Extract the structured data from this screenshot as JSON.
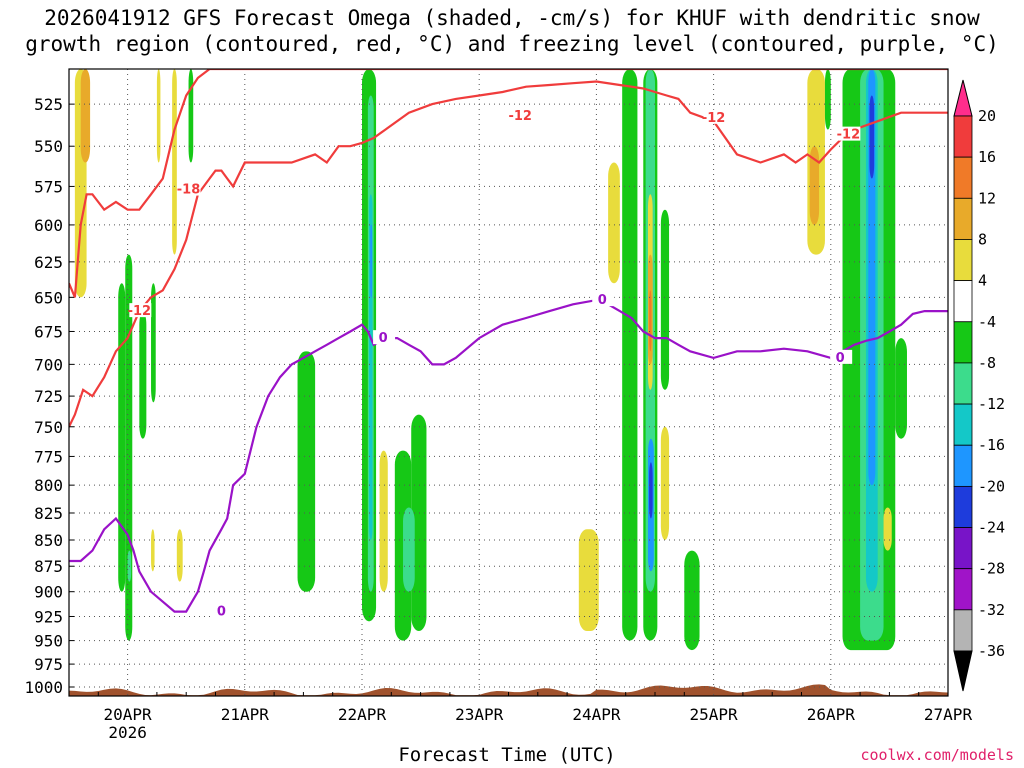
{
  "title": {
    "line1": "2026041912 GFS Forecast Omega (shaded, -cm/s) for KHUF with dendritic snow",
    "line2": "growth region (contoured, red, °C) and freezing level (contoured, purple, °C)"
  },
  "xlabel": "Forecast Time (UTC)",
  "credit": "coolwx.com/models",
  "chart_data": {
    "type": "heatmap",
    "x_ticks": [
      {
        "day": 19.0,
        "label": "20APR",
        "sub": "2026"
      },
      {
        "day": 20.0,
        "label": "21APR"
      },
      {
        "day": 21.0,
        "label": "22APR"
      },
      {
        "day": 22.0,
        "label": "23APR"
      },
      {
        "day": 23.0,
        "label": "24APR"
      },
      {
        "day": 24.0,
        "label": "25APR"
      },
      {
        "day": 25.0,
        "label": "26APR"
      },
      {
        "day": 26.0,
        "label": "27APR"
      }
    ],
    "xlim": [
      18.5,
      26.0
    ],
    "y_ticks": [
      525,
      550,
      575,
      600,
      625,
      650,
      675,
      700,
      725,
      750,
      775,
      800,
      825,
      850,
      875,
      900,
      925,
      950,
      975,
      1000
    ],
    "ylim": [
      1010,
      505
    ],
    "y_scale": "log-pressure",
    "grid": "dotted",
    "colorbar": {
      "labels": [
        "20",
        "16",
        "12",
        "8",
        "4",
        "-4",
        "-8",
        "-12",
        "-16",
        "-20",
        "-24",
        "-28",
        "-32",
        "-36"
      ],
      "colors": [
        "#ff2d8c",
        "#f03c3c",
        "#f07a28",
        "#e8aa2a",
        "#e8dc3c",
        "#ffffff",
        "#16c816",
        "#3cdc8c",
        "#14c8c8",
        "#1e96ff",
        "#1e3cdc",
        "#7814c8",
        "#a014c8",
        "#b4b4b4",
        "#000000"
      ]
    },
    "shaded_regions": [
      {
        "x": [
          18.55,
          18.65
        ],
        "p": [
          505,
          650
        ],
        "class": "4"
      },
      {
        "x": [
          18.6,
          18.68
        ],
        "p": [
          505,
          560
        ],
        "class": "8"
      },
      {
        "x": [
          18.92,
          18.98
        ],
        "p": [
          640,
          900
        ],
        "class": "-4"
      },
      {
        "x": [
          18.98,
          19.04
        ],
        "p": [
          620,
          950
        ],
        "class": "-4"
      },
      {
        "x": [
          19.0,
          19.03
        ],
        "p": [
          860,
          890
        ],
        "class": "-8"
      },
      {
        "x": [
          19.1,
          19.16
        ],
        "p": [
          660,
          760
        ],
        "class": "-4"
      },
      {
        "x": [
          19.2,
          19.24
        ],
        "p": [
          640,
          730
        ],
        "class": "-4"
      },
      {
        "x": [
          19.25,
          19.28
        ],
        "p": [
          505,
          560
        ],
        "class": "4"
      },
      {
        "x": [
          19.38,
          19.42
        ],
        "p": [
          505,
          620
        ],
        "class": "4"
      },
      {
        "x": [
          19.2,
          19.23
        ],
        "p": [
          840,
          880
        ],
        "class": "4"
      },
      {
        "x": [
          19.42,
          19.47
        ],
        "p": [
          840,
          890
        ],
        "class": "4"
      },
      {
        "x": [
          19.52,
          19.56
        ],
        "p": [
          505,
          560
        ],
        "class": "-4"
      },
      {
        "x": [
          20.45,
          20.6
        ],
        "p": [
          690,
          900
        ],
        "class": "-4"
      },
      {
        "x": [
          21.0,
          21.12
        ],
        "p": [
          505,
          930
        ],
        "class": "-4"
      },
      {
        "x": [
          21.05,
          21.1
        ],
        "p": [
          520,
          900
        ],
        "class": "-8"
      },
      {
        "x": [
          21.06,
          21.09
        ],
        "p": [
          580,
          850
        ],
        "class": "-12"
      },
      {
        "x": [
          21.07,
          21.08
        ],
        "p": [
          600,
          650
        ],
        "class": "-16"
      },
      {
        "x": [
          21.15,
          21.22
        ],
        "p": [
          770,
          900
        ],
        "class": "4"
      },
      {
        "x": [
          21.28,
          21.42
        ],
        "p": [
          770,
          950
        ],
        "class": "-4"
      },
      {
        "x": [
          21.42,
          21.55
        ],
        "p": [
          740,
          940
        ],
        "class": "-4"
      },
      {
        "x": [
          21.35,
          21.45
        ],
        "p": [
          820,
          900
        ],
        "class": "-8"
      },
      {
        "x": [
          22.85,
          23.02
        ],
        "p": [
          840,
          940
        ],
        "class": "4"
      },
      {
        "x": [
          23.1,
          23.2
        ],
        "p": [
          560,
          640
        ],
        "class": "4"
      },
      {
        "x": [
          23.22,
          23.35
        ],
        "p": [
          505,
          950
        ],
        "class": "-4"
      },
      {
        "x": [
          23.4,
          23.52
        ],
        "p": [
          505,
          950
        ],
        "class": "-4"
      },
      {
        "x": [
          23.42,
          23.5
        ],
        "p": [
          505,
          900
        ],
        "class": "-8"
      },
      {
        "x": [
          23.44,
          23.48
        ],
        "p": [
          580,
          720
        ],
        "class": "4"
      },
      {
        "x": [
          23.44,
          23.48
        ],
        "p": [
          620,
          700
        ],
        "class": "8"
      },
      {
        "x": [
          23.45,
          23.47
        ],
        "p": [
          645,
          690
        ],
        "class": "12"
      },
      {
        "x": [
          23.44,
          23.49
        ],
        "p": [
          760,
          880
        ],
        "class": "-16"
      },
      {
        "x": [
          23.45,
          23.48
        ],
        "p": [
          780,
          830
        ],
        "class": "-20"
      },
      {
        "x": [
          23.55,
          23.62
        ],
        "p": [
          590,
          720
        ],
        "class": "-4"
      },
      {
        "x": [
          23.55,
          23.62
        ],
        "p": [
          750,
          850
        ],
        "class": "4"
      },
      {
        "x": [
          23.75,
          23.88
        ],
        "p": [
          860,
          960
        ],
        "class": "-4"
      },
      {
        "x": [
          24.8,
          24.95
        ],
        "p": [
          505,
          620
        ],
        "class": "4"
      },
      {
        "x": [
          24.82,
          24.9
        ],
        "p": [
          550,
          600
        ],
        "class": "8"
      },
      {
        "x": [
          24.95,
          25.0
        ],
        "p": [
          505,
          540
        ],
        "class": "-4"
      },
      {
        "x": [
          25.1,
          25.55
        ],
        "p": [
          505,
          960
        ],
        "class": "-4"
      },
      {
        "x": [
          25.25,
          25.45
        ],
        "p": [
          505,
          950
        ],
        "class": "-8"
      },
      {
        "x": [
          25.3,
          25.4
        ],
        "p": [
          505,
          900
        ],
        "class": "-12"
      },
      {
        "x": [
          25.32,
          25.38
        ],
        "p": [
          505,
          800
        ],
        "class": "-16"
      },
      {
        "x": [
          25.33,
          25.37
        ],
        "p": [
          520,
          570
        ],
        "class": "-20"
      },
      {
        "x": [
          25.55,
          25.65
        ],
        "p": [
          680,
          760
        ],
        "class": "-4"
      },
      {
        "x": [
          25.45,
          25.52
        ],
        "p": [
          820,
          860
        ],
        "class": "4"
      }
    ],
    "series": [
      {
        "name": "dendritic snow growth region (red)",
        "labels": [
          "-18",
          "-12",
          "-12",
          "-12",
          "-12"
        ],
        "color": "#f03c3c",
        "lines": [
          {
            "x": [
              18.5,
              18.55,
              18.6,
              18.65,
              18.7,
              18.75,
              18.8,
              18.9,
              19.0,
              19.1,
              19.2,
              19.3,
              19.4,
              19.5,
              19.6,
              19.7,
              19.8,
              19.9,
              20.0,
              20.1,
              20.2,
              20.3,
              20.4,
              20.5,
              20.6,
              20.7,
              20.8,
              20.9,
              21.0,
              21.1,
              21.2,
              21.3,
              21.4,
              21.5,
              21.6,
              21.7,
              21.8,
              21.9,
              22.0,
              22.2,
              22.4,
              22.6,
              22.8,
              23.0,
              23.1,
              23.2,
              23.3,
              23.4,
              23.5,
              23.6,
              23.7,
              23.8,
              24.0,
              24.2,
              24.4,
              24.6,
              24.8,
              25.0,
              25.2,
              25.4,
              25.6,
              25.8,
              26.0
            ],
            "p": [
              640,
              650,
              600,
              580,
              580,
              585,
              590,
              585,
              590,
              590,
              580,
              570,
              540,
              520,
              510,
              505,
              505,
              505,
              505,
              505,
              505,
              505,
              505,
              505,
              505,
              505,
              505,
              505,
              505,
              505,
              505,
              505,
              505,
              505,
              505,
              505,
              505,
              505,
              505,
              505,
              505,
              505,
              505,
              505,
              505,
              505,
              505,
              505,
              505,
              505,
              505,
              505,
              505,
              505,
              505,
              505,
              505,
              505,
              505,
              505,
              505,
              505,
              505
            ]
          },
          {
            "x": [
              18.5,
              18.55,
              18.62,
              18.7,
              18.8,
              18.9,
              19.0,
              19.1,
              19.2,
              19.3,
              19.4,
              19.5,
              19.6,
              19.7,
              19.75,
              19.8,
              19.85,
              19.9,
              20.0,
              20.2,
              20.4,
              20.6,
              20.7,
              20.8,
              20.9,
              21.0,
              21.1,
              21.2,
              21.4,
              21.6,
              21.8,
              22.0,
              22.2,
              22.4,
              22.6,
              22.8,
              23.0,
              23.2,
              23.3,
              23.4,
              23.5,
              23.6,
              23.7,
              23.8,
              24.0,
              24.2,
              24.4,
              24.6,
              24.7,
              24.8,
              24.9,
              25.0,
              25.1,
              25.2,
              25.4,
              25.6,
              25.8,
              26.0
            ],
            "p": [
              750,
              740,
              720,
              725,
              710,
              690,
              680,
              660,
              650,
              645,
              630,
              610,
              580,
              570,
              565,
              565,
              570,
              575,
              560,
              560,
              560,
              555,
              560,
              550,
              550,
              548,
              545,
              540,
              530,
              525,
              522,
              520,
              518,
              515,
              514,
              513,
              512,
              514,
              515,
              516,
              518,
              520,
              522,
              530,
              535,
              555,
              560,
              555,
              560,
              555,
              560,
              552,
              545,
              540,
              535,
              530,
              530,
              530
            ]
          }
        ]
      },
      {
        "name": "freezing level (purple)",
        "labels": [
          "0",
          "0",
          "0",
          "0"
        ],
        "color": "#9a12c8",
        "lines": [
          {
            "x": [
              18.5,
              18.6,
              18.7,
              18.8,
              18.9,
              19.0,
              19.05,
              19.1,
              19.2,
              19.3,
              19.4,
              19.5,
              19.6,
              19.65,
              19.7,
              19.8,
              19.85,
              19.9,
              20.0,
              20.1,
              20.2,
              20.3,
              20.4,
              20.5,
              20.6,
              20.7,
              20.8,
              20.9,
              21.0,
              21.05,
              21.1,
              21.2,
              21.3,
              21.4,
              21.5,
              21.6,
              21.7,
              21.8,
              22.0,
              22.2,
              22.4,
              22.6,
              22.8,
              23.0,
              23.1,
              23.2,
              23.3,
              23.4,
              23.5,
              23.6,
              23.7,
              23.8,
              24.0,
              24.2,
              24.4,
              24.6,
              24.8,
              25.0,
              25.1,
              25.2,
              25.3,
              25.4,
              25.5,
              25.6,
              25.7,
              25.8,
              26.0
            ],
            "p": [
              870,
              870,
              860,
              840,
              830,
              845,
              860,
              880,
              900,
              910,
              920,
              920,
              900,
              880,
              860,
              840,
              830,
              800,
              790,
              750,
              725,
              710,
              700,
              695,
              690,
              685,
              680,
              675,
              670,
              675,
              685,
              680,
              680,
              685,
              690,
              700,
              700,
              695,
              680,
              670,
              665,
              660,
              655,
              652,
              655,
              660,
              665,
              675,
              680,
              680,
              685,
              690,
              695,
              690,
              690,
              688,
              690,
              695,
              690,
              685,
              682,
              680,
              675,
              670,
              662,
              660,
              660
            ]
          }
        ]
      }
    ]
  }
}
